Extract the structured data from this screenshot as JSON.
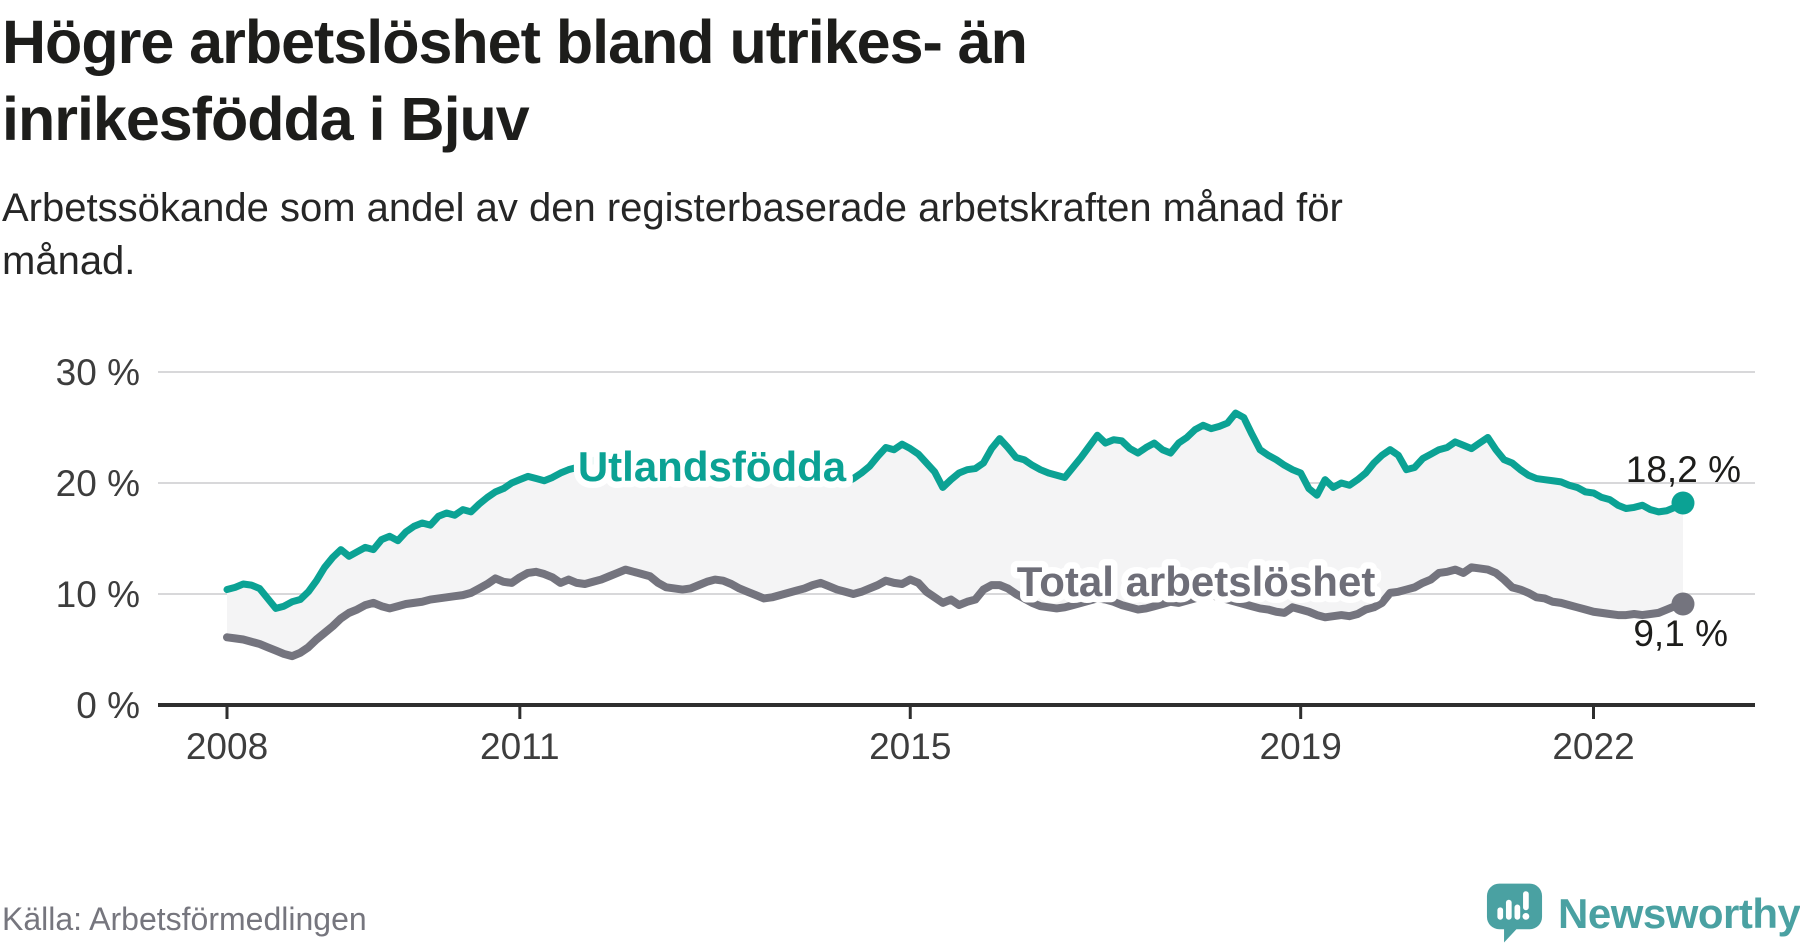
{
  "header": {
    "title_lines": [
      "Högre arbetslöshet bland utrikes- än",
      "inrikesfödda i Bjuv"
    ],
    "subtitle_lines": [
      "Arbetssökande som andel av den registerbaserade arbetskraften månad för",
      "månad."
    ]
  },
  "footer": {
    "source": "Källa: Arbetsförmedlingen",
    "brand_name": "Newsworthy",
    "brand_icon": "speech-bubble-with-bar-chart-and-exclamation"
  },
  "colors": {
    "series_foreign_born": "#0ba294",
    "series_total": "#74747e",
    "series_total_label": "#6e6e78",
    "fill_between": "#f4f4f5",
    "gridline": "#d8d8da",
    "axis": "#2e2e2e",
    "tick_text": "#3d3d3d",
    "value_text": "#1d1d1b",
    "brand_teal": "#4aa1a2"
  },
  "chart_data": {
    "type": "line",
    "title": "Högre arbetslöshet bland utrikes- än inrikesfödda i Bjuv",
    "subtitle": "Arbetssökande som andel av den registerbaserade arbetskraften månad för månad.",
    "unit": "%",
    "frequency": "monthly",
    "x_start": "2008-01",
    "x_end": "2022-12",
    "ylim": [
      0,
      30
    ],
    "grid": "horizontal",
    "legend_position": "inline-labels",
    "y_ticks": [
      {
        "label": "0 %",
        "value": 0
      },
      {
        "label": "10 %",
        "value": 10
      },
      {
        "label": "20 %",
        "value": 20
      },
      {
        "label": "30 %",
        "value": 30
      }
    ],
    "x_ticks": [
      {
        "label": "2008",
        "month_index": 0
      },
      {
        "label": "2011",
        "month_index": 36
      },
      {
        "label": "2015",
        "month_index": 84
      },
      {
        "label": "2019",
        "month_index": 132
      },
      {
        "label": "2022",
        "month_index": 168
      }
    ],
    "series": [
      {
        "name": "Utlandsfödda",
        "color": "#0ba294",
        "end_label": "18,2 %",
        "end_value": 18.2,
        "values": [
          10.4,
          10.6,
          10.9,
          10.8,
          10.5,
          9.6,
          8.7,
          8.9,
          9.3,
          9.5,
          10.2,
          11.2,
          12.4,
          13.3,
          14.0,
          13.4,
          13.8,
          14.2,
          14.0,
          14.9,
          15.2,
          14.8,
          15.6,
          16.1,
          16.4,
          16.2,
          17.0,
          17.3,
          17.1,
          17.6,
          17.4,
          18.1,
          18.7,
          19.2,
          19.5,
          20.0,
          20.3,
          20.6,
          20.4,
          20.2,
          20.5,
          20.9,
          21.2,
          21.4,
          21.7,
          22.0,
          22.3,
          21.9,
          21.6,
          21.8,
          22.0,
          21.8,
          21.9,
          22.1,
          22.4,
          22.2,
          21.9,
          21.7,
          21.8,
          22.0,
          21.8,
          21.6,
          21.4,
          21.5,
          21.3,
          21.1,
          21.3,
          21.5,
          21.3,
          21.2,
          21.0,
          20.9,
          20.8,
          20.6,
          20.3,
          20.1,
          20.0,
          20.4,
          20.9,
          21.5,
          22.4,
          23.2,
          23.0,
          23.5,
          23.1,
          22.6,
          21.8,
          21.0,
          19.6,
          20.3,
          20.9,
          21.2,
          21.3,
          21.8,
          23.1,
          24.0,
          23.2,
          22.3,
          22.1,
          21.6,
          21.2,
          20.9,
          20.7,
          20.5,
          21.4,
          22.3,
          23.3,
          24.3,
          23.6,
          23.9,
          23.8,
          23.1,
          22.7,
          23.2,
          23.6,
          23.0,
          22.7,
          23.6,
          24.1,
          24.8,
          25.2,
          24.9,
          25.1,
          25.4,
          26.3,
          25.9,
          24.4,
          23.0,
          22.5,
          22.1,
          21.6,
          21.2,
          20.9,
          19.5,
          18.9,
          20.3,
          19.6,
          20.0,
          19.8,
          20.3,
          20.9,
          21.8,
          22.5,
          23.0,
          22.5,
          21.2,
          21.4,
          22.2,
          22.6,
          23.0,
          23.2,
          23.7,
          23.4,
          23.1,
          23.6,
          24.1,
          23.0,
          22.1,
          21.8,
          21.2,
          20.7,
          20.4,
          20.3,
          20.2,
          20.1,
          19.8,
          19.6,
          19.2,
          19.1,
          18.7,
          18.5,
          18.0,
          17.7,
          17.8,
          18.0,
          17.6,
          17.4,
          17.5,
          17.8,
          18.2
        ]
      },
      {
        "name": "Total arbetslöshet",
        "color": "#74747e",
        "end_label": "9,1 %",
        "end_value": 9.1,
        "values": [
          6.1,
          6.0,
          5.9,
          5.7,
          5.5,
          5.2,
          4.9,
          4.6,
          4.4,
          4.7,
          5.2,
          5.9,
          6.5,
          7.1,
          7.8,
          8.3,
          8.6,
          9.0,
          9.2,
          8.9,
          8.7,
          8.9,
          9.1,
          9.2,
          9.3,
          9.5,
          9.6,
          9.7,
          9.8,
          9.9,
          10.1,
          10.5,
          10.9,
          11.4,
          11.1,
          11.0,
          11.5,
          11.9,
          12.0,
          11.8,
          11.5,
          11.0,
          11.3,
          11.0,
          10.9,
          11.1,
          11.3,
          11.6,
          11.9,
          12.2,
          12.0,
          11.8,
          11.6,
          11.0,
          10.6,
          10.5,
          10.4,
          10.5,
          10.8,
          11.1,
          11.3,
          11.2,
          10.9,
          10.5,
          10.2,
          9.9,
          9.6,
          9.7,
          9.9,
          10.1,
          10.3,
          10.5,
          10.8,
          11.0,
          10.7,
          10.4,
          10.2,
          10.0,
          10.2,
          10.5,
          10.8,
          11.2,
          11.0,
          10.9,
          11.3,
          11.0,
          10.2,
          9.7,
          9.2,
          9.5,
          9.0,
          9.3,
          9.5,
          10.4,
          10.8,
          10.8,
          10.5,
          10.0,
          9.6,
          9.2,
          8.9,
          8.8,
          8.7,
          8.8,
          9.0,
          9.2,
          9.4,
          9.6,
          9.5,
          9.3,
          9.0,
          8.8,
          8.6,
          8.7,
          8.9,
          9.1,
          9.3,
          9.2,
          9.4,
          9.6,
          9.8,
          9.9,
          9.7,
          9.5,
          9.3,
          9.1,
          8.9,
          8.7,
          8.6,
          8.4,
          8.3,
          8.8,
          8.6,
          8.4,
          8.1,
          7.9,
          8.0,
          8.1,
          8.0,
          8.2,
          8.6,
          8.8,
          9.2,
          10.1,
          10.2,
          10.4,
          10.6,
          11.0,
          11.3,
          11.9,
          12.0,
          12.2,
          11.9,
          12.4,
          12.3,
          12.2,
          11.9,
          11.3,
          10.6,
          10.4,
          10.1,
          9.7,
          9.6,
          9.3,
          9.2,
          9.0,
          8.8,
          8.6,
          8.4,
          8.3,
          8.2,
          8.1,
          8.1,
          8.2,
          8.1,
          8.2,
          8.3,
          8.6,
          8.9,
          9.1
        ]
      }
    ],
    "source": "Källa: Arbetsförmedlingen"
  }
}
